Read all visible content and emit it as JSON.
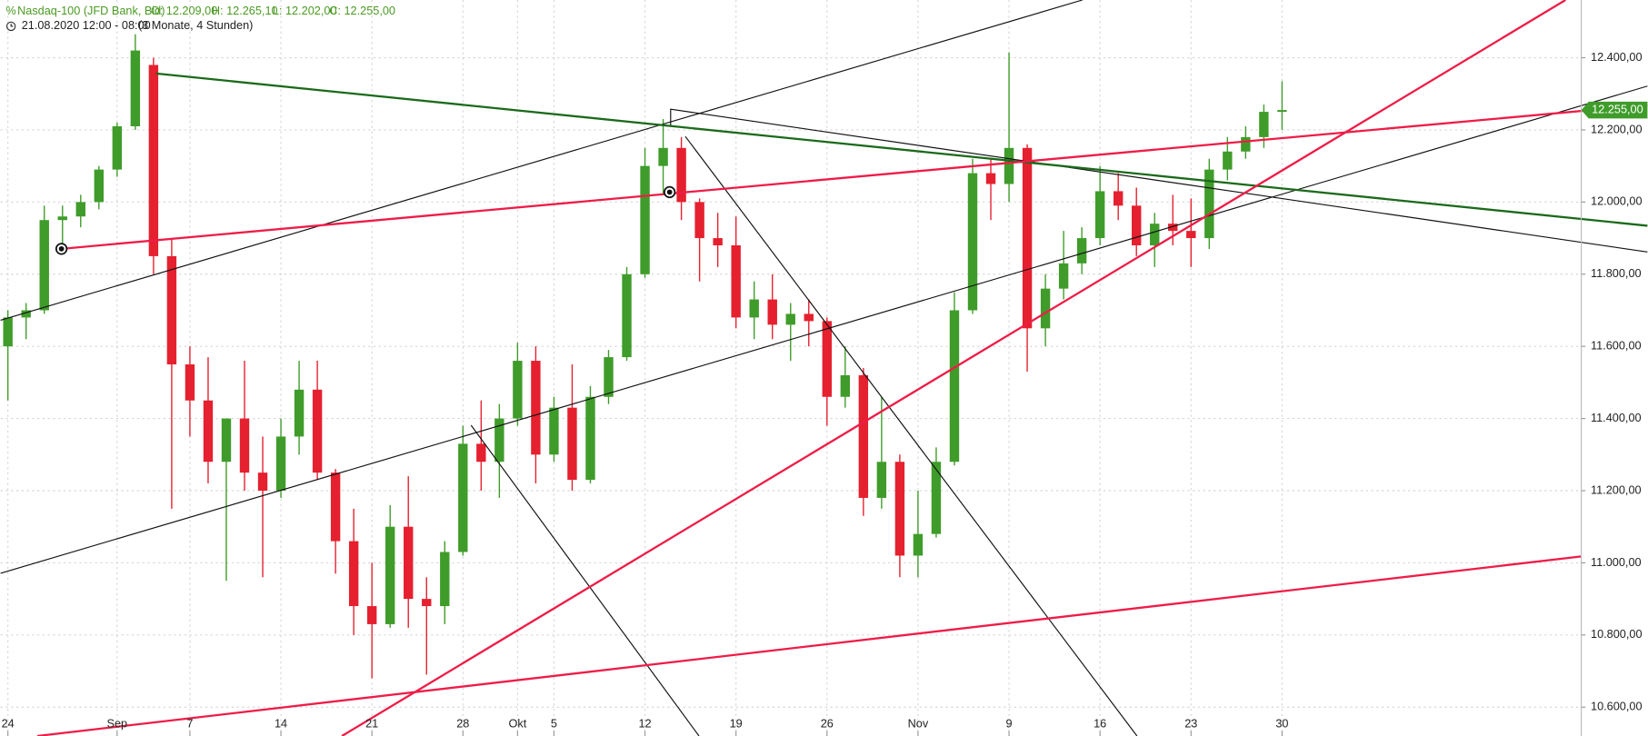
{
  "chart_data": {
    "type": "candlestick",
    "header": {
      "instrument": "Nasdaq-100 (JFD Bank, Bid)",
      "open": "O: 12.209,00",
      "high": "H: 12.265,10",
      "low": "L: 12.202,00",
      "close": "C: 12.255,00",
      "date_range": "21.08.2020 12:00 - 08:00",
      "period": "(3 Monate, 4 Stunden)"
    },
    "categories": [
      "24",
      null,
      null,
      null,
      null,
      null,
      "Sep",
      null,
      null,
      null,
      "7",
      null,
      null,
      null,
      null,
      "14",
      null,
      null,
      null,
      null,
      "21",
      null,
      null,
      null,
      null,
      "28",
      null,
      null,
      "Okt",
      null,
      "5",
      null,
      null,
      null,
      null,
      "12",
      null,
      null,
      null,
      null,
      "19",
      null,
      null,
      null,
      null,
      "26",
      null,
      null,
      null,
      null,
      "Nov",
      null,
      null,
      null,
      null,
      "9",
      null,
      null,
      null,
      null,
      "16",
      null,
      null,
      null,
      null,
      "23",
      null,
      null,
      null,
      null,
      "30"
    ],
    "open": [
      11600,
      11680,
      11700,
      11950,
      11960,
      12000,
      12090,
      12210,
      12380,
      11850,
      11550,
      11450,
      11280,
      11400,
      11250,
      11200,
      11350,
      11480,
      11250,
      11060,
      10880,
      10830,
      11100,
      10900,
      10880,
      11030,
      11330,
      11280,
      11400,
      11560,
      11300,
      11430,
      11230,
      11460,
      11570,
      11800,
      12100,
      12150,
      12000,
      11900,
      11880,
      11680,
      11730,
      11660,
      11690,
      11670,
      11460,
      11520,
      11180,
      11280,
      11020,
      11080,
      11280,
      11700,
      12080,
      12050,
      12150,
      11650,
      11760,
      11830,
      11900,
      12030,
      11990,
      11880,
      11940,
      11920,
      11900,
      12090,
      12140,
      12180,
      12250
    ],
    "high": [
      11700,
      11720,
      11990,
      11990,
      12020,
      12100,
      12220,
      12465,
      12400,
      11900,
      11600,
      11570,
      11400,
      11560,
      11350,
      11400,
      11560,
      11560,
      11260,
      11150,
      11000,
      11160,
      11240,
      10960,
      11060,
      11380,
      11450,
      11440,
      11610,
      11600,
      11460,
      11550,
      11490,
      11590,
      11820,
      12150,
      12230,
      12180,
      12010,
      11970,
      11960,
      11780,
      11800,
      11720,
      11730,
      11680,
      11600,
      11540,
      11460,
      11300,
      11200,
      11320,
      11750,
      12120,
      12120,
      12415,
      12160,
      11800,
      11920,
      11930,
      12100,
      12080,
      12040,
      11970,
      12020,
      12010,
      12120,
      12180,
      12210,
      12270,
      12335
    ],
    "low": [
      11450,
      11620,
      11690,
      11880,
      11930,
      11980,
      12070,
      12200,
      11800,
      11150,
      11350,
      11220,
      10950,
      11200,
      10960,
      11180,
      11300,
      11230,
      10970,
      10800,
      10680,
      10820,
      10820,
      10690,
      10830,
      11020,
      11200,
      11180,
      11380,
      11220,
      11280,
      11200,
      11220,
      11440,
      11560,
      11790,
      12020,
      11950,
      11780,
      11820,
      11650,
      11620,
      11620,
      11560,
      11600,
      11380,
      11430,
      11130,
      11150,
      10960,
      10960,
      11070,
      11270,
      11690,
      11950,
      12000,
      11530,
      11600,
      11730,
      11800,
      11880,
      11950,
      11850,
      11820,
      11880,
      11820,
      11870,
      12060,
      12120,
      12150,
      12200
    ],
    "close": [
      11680,
      11700,
      11950,
      11960,
      12000,
      12090,
      12210,
      12420,
      11850,
      11550,
      11450,
      11280,
      11400,
      11250,
      11200,
      11350,
      11480,
      11250,
      11060,
      10880,
      10830,
      11100,
      10900,
      10880,
      11030,
      11330,
      11280,
      11400,
      11560,
      11300,
      11430,
      11230,
      11460,
      11570,
      11800,
      12100,
      12150,
      12000,
      11900,
      11880,
      11680,
      11730,
      11660,
      11690,
      11670,
      11460,
      11520,
      11180,
      11280,
      11020,
      11080,
      11280,
      11700,
      12080,
      12050,
      12150,
      11650,
      11760,
      11830,
      11900,
      12030,
      11990,
      11880,
      11940,
      11920,
      11900,
      12090,
      12140,
      12180,
      12250,
      12255
    ],
    "up_color": "#3f9c2a",
    "down_color": "#e5202f",
    "ylim": [
      10520,
      12560
    ],
    "yticks": [
      {
        "value": 10600,
        "label": "10.600,00"
      },
      {
        "value": 10800,
        "label": "10.800,00"
      },
      {
        "value": 11000,
        "label": "11.000,00"
      },
      {
        "value": 11200,
        "label": "11.200,00"
      },
      {
        "value": 11400,
        "label": "11.400,00"
      },
      {
        "value": 11600,
        "label": "11.600,00"
      },
      {
        "value": 11800,
        "label": "11.800,00"
      },
      {
        "value": 12000,
        "label": "12.000,00"
      },
      {
        "value": 12200,
        "label": "12.200,00"
      },
      {
        "value": 12400,
        "label": "12.400,00"
      }
    ],
    "last_price": {
      "value": 12255,
      "label": "12.255,00"
    },
    "grid": true
  }
}
